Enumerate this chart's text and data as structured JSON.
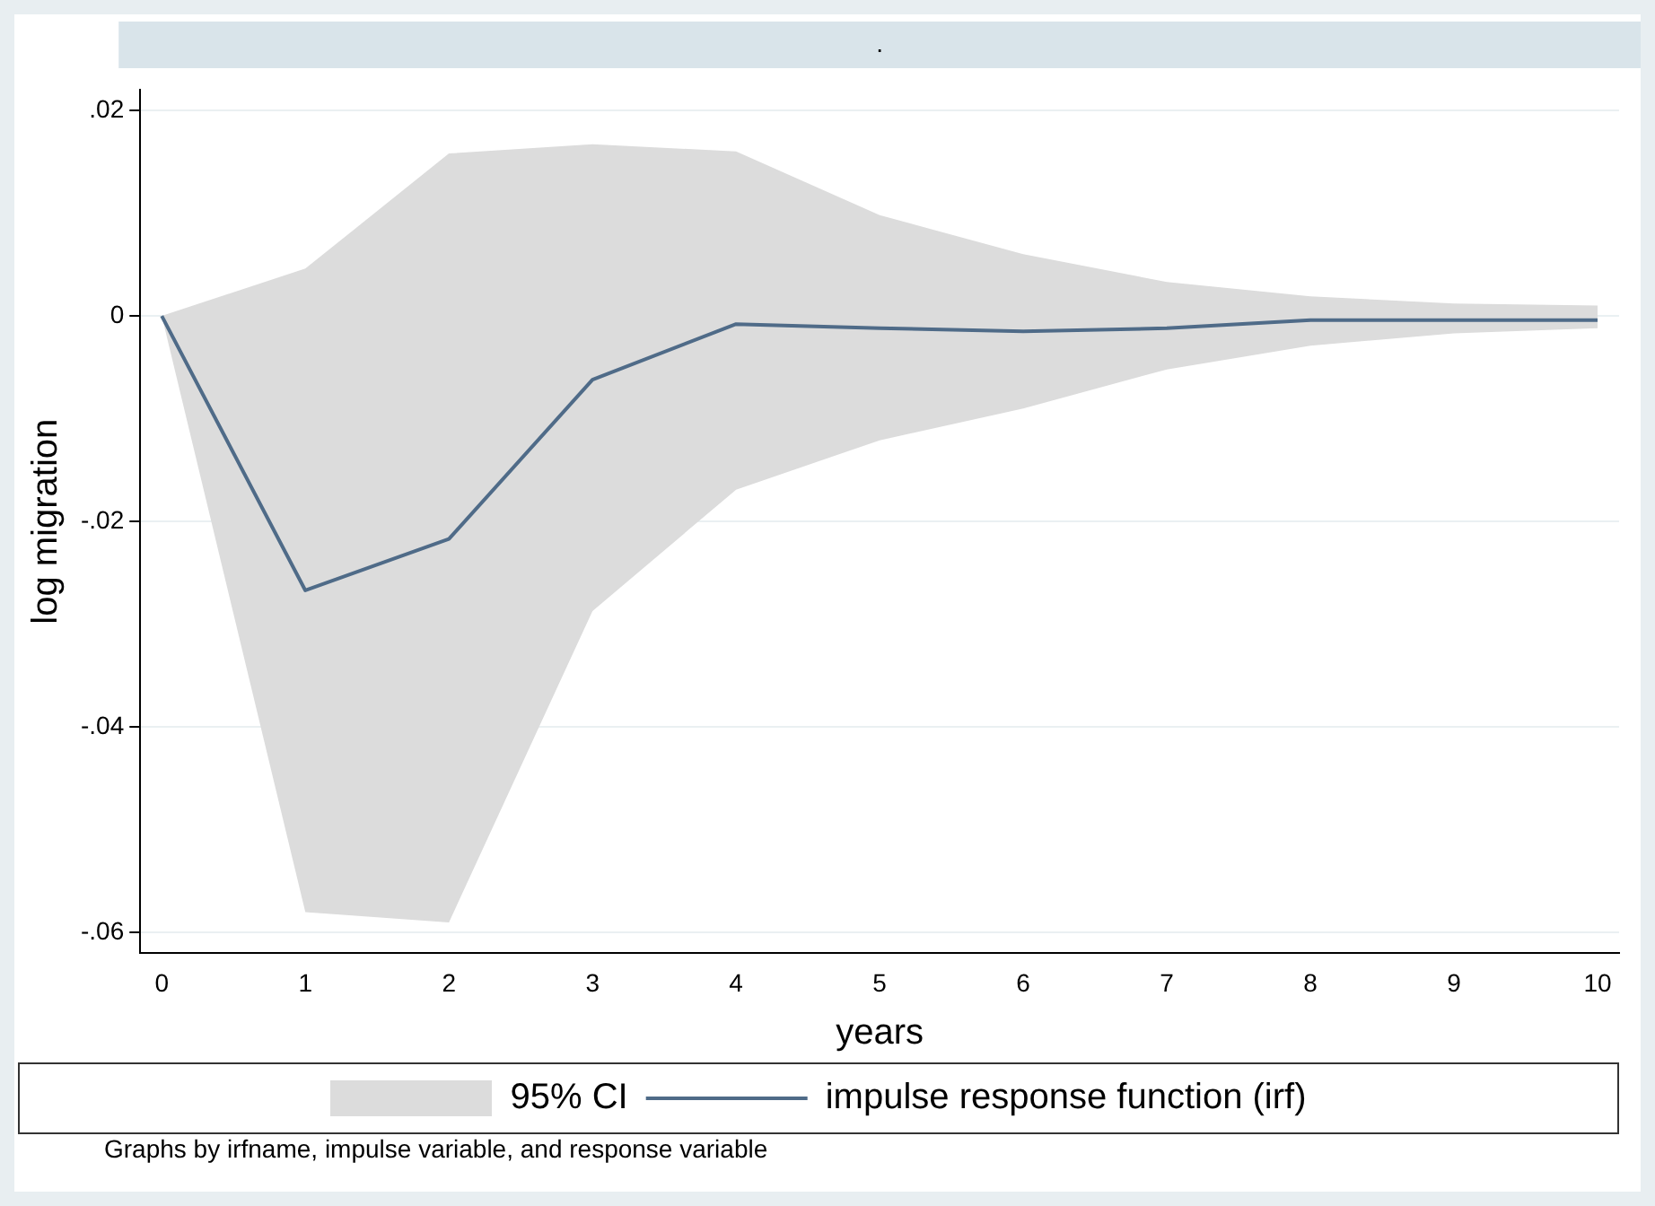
{
  "chart_data": {
    "type": "line",
    "title": ".",
    "xlabel": "years",
    "ylabel": "log migration",
    "x": [
      0,
      1,
      2,
      3,
      4,
      5,
      6,
      7,
      8,
      9,
      10
    ],
    "series": [
      {
        "name": "impulse response function (irf)",
        "color": "#4f6b88",
        "values": [
          0,
          -0.0267,
          -0.0217,
          -0.0062,
          -0.0008,
          -0.0012,
          -0.0015,
          -0.0012,
          -0.0004,
          -0.0004,
          -0.0004
        ],
        "upper": [
          0,
          0.0046,
          0.0158,
          0.0167,
          0.016,
          0.0098,
          0.006,
          0.0033,
          0.0019,
          0.0012,
          0.001
        ],
        "lower": [
          0,
          -0.058,
          -0.059,
          -0.0287,
          -0.0169,
          -0.0121,
          -0.009,
          -0.0052,
          -0.0029,
          -0.0017,
          -0.0012
        ]
      }
    ],
    "xlim": [
      -0.15,
      10.15
    ],
    "xticks": [
      0,
      1,
      2,
      3,
      4,
      5,
      6,
      7,
      8,
      9,
      10
    ],
    "ylim": [
      -0.062,
      0.022
    ],
    "yticks": [
      {
        "value": 0.02,
        "label": ".02"
      },
      {
        "value": 0,
        "label": "0"
      },
      {
        "value": -0.02,
        "label": "-.02"
      },
      {
        "value": -0.04,
        "label": "-.04"
      },
      {
        "value": -0.06,
        "label": "-.06"
      }
    ],
    "grid": "y",
    "legend": "bottom",
    "marker": "none",
    "line_style": "solid",
    "annotations": [
      "95% CI",
      "Graphs by irfname, impulse variable, and response variable"
    ]
  }
}
